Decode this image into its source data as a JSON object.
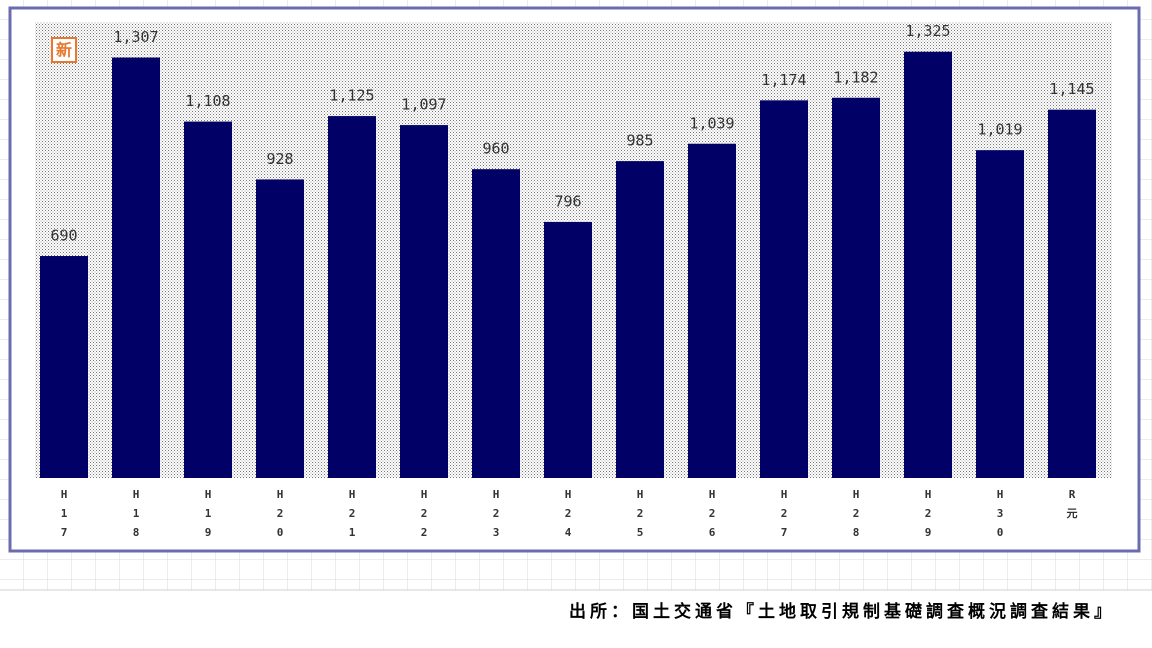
{
  "chart_data": {
    "type": "bar",
    "badge": "新",
    "categories": [
      "H17",
      "H18",
      "H19",
      "H20",
      "H21",
      "H22",
      "H23",
      "H24",
      "H25",
      "H26",
      "H27",
      "H28",
      "H29",
      "H30",
      "R元"
    ],
    "values": [
      690,
      1307,
      1108,
      928,
      1125,
      1097,
      960,
      796,
      985,
      1039,
      1174,
      1182,
      1325,
      1019,
      1145
    ],
    "value_labels": [
      "690",
      "1,307",
      "1,108",
      "928",
      "1,125",
      "1,097",
      "960",
      "796",
      "985",
      "1,039",
      "1,174",
      "1,182",
      "1,325",
      "1,019",
      "1,145"
    ],
    "color": "#000066",
    "source": "出所：国土交通省『土地取引規制基礎調査概況調査結果』"
  }
}
